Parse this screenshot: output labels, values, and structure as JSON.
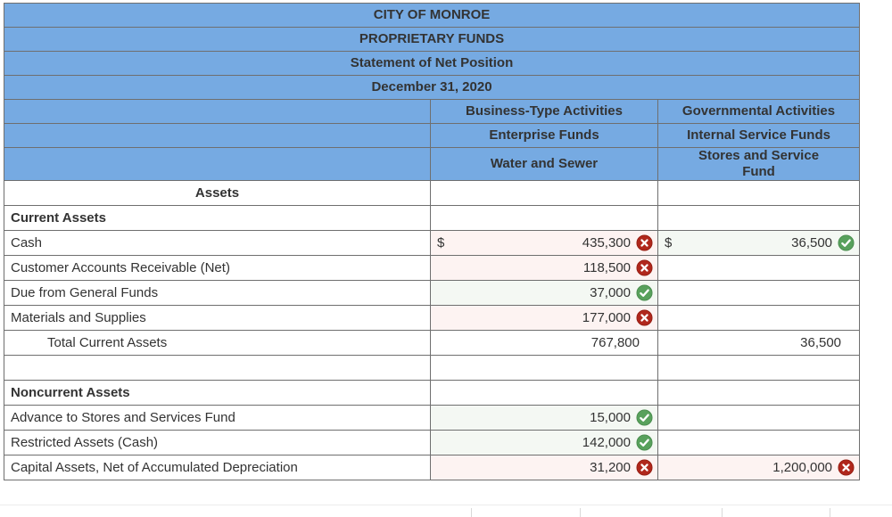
{
  "title": {
    "line1": "CITY OF MONROE",
    "line2": "PROPRIETARY FUNDS",
    "line3": "Statement of Net Position",
    "line4": "December 31, 2020"
  },
  "columns": {
    "business": {
      "group": "Business-Type Activities",
      "fund_type": "Enterprise Funds",
      "fund_name": "Water and Sewer"
    },
    "governmental": {
      "group": "Governmental Activities",
      "fund_type": "Internal Service Funds",
      "fund_name": "Stores and Service Fund"
    }
  },
  "rows": [
    {
      "type": "section_center",
      "label": "Assets"
    },
    {
      "type": "section",
      "label": "Current Assets"
    },
    {
      "type": "item",
      "label": "Cash",
      "business": {
        "dollar": "$",
        "value": "435,300",
        "status": "incorrect"
      },
      "governmental": {
        "dollar": "$",
        "value": "36,500",
        "status": "correct"
      }
    },
    {
      "type": "item",
      "label": "Customer Accounts Receivable (Net)",
      "business": {
        "value": "118,500",
        "status": "incorrect"
      }
    },
    {
      "type": "item",
      "label": "Due from General Funds",
      "business": {
        "value": "37,000",
        "status": "correct"
      }
    },
    {
      "type": "item",
      "label": "Materials and Supplies",
      "business": {
        "value": "177,000",
        "status": "incorrect"
      }
    },
    {
      "type": "total",
      "label": "Total Current Assets",
      "business": {
        "value": "767,800"
      },
      "governmental": {
        "value": "36,500"
      }
    },
    {
      "type": "blank",
      "label": ""
    },
    {
      "type": "section",
      "label": "Noncurrent Assets"
    },
    {
      "type": "item",
      "label": "Advance to Stores and Services Fund",
      "business": {
        "value": "15,000",
        "status": "correct"
      }
    },
    {
      "type": "item",
      "label": "Restricted Assets (Cash)",
      "business": {
        "value": "142,000",
        "status": "correct"
      }
    },
    {
      "type": "item",
      "label": "Capital Assets, Net of Accumulated Depreciation",
      "business": {
        "value": "31,200",
        "status": "incorrect"
      },
      "governmental": {
        "value": "1,200,000",
        "status": "incorrect"
      }
    }
  ],
  "icons": {
    "incorrect": "red-x-circle-icon",
    "correct": "green-check-circle-icon"
  },
  "colors": {
    "header_blue": "#76aae2",
    "border_gray": "#6f6f6f",
    "incorrect_cell_bg": "#fdf3f2",
    "correct_cell_bg": "#f4f8f3",
    "incorrect_icon_red": "#b0271c",
    "correct_icon_green": "#58a15c",
    "text": "#333333"
  }
}
